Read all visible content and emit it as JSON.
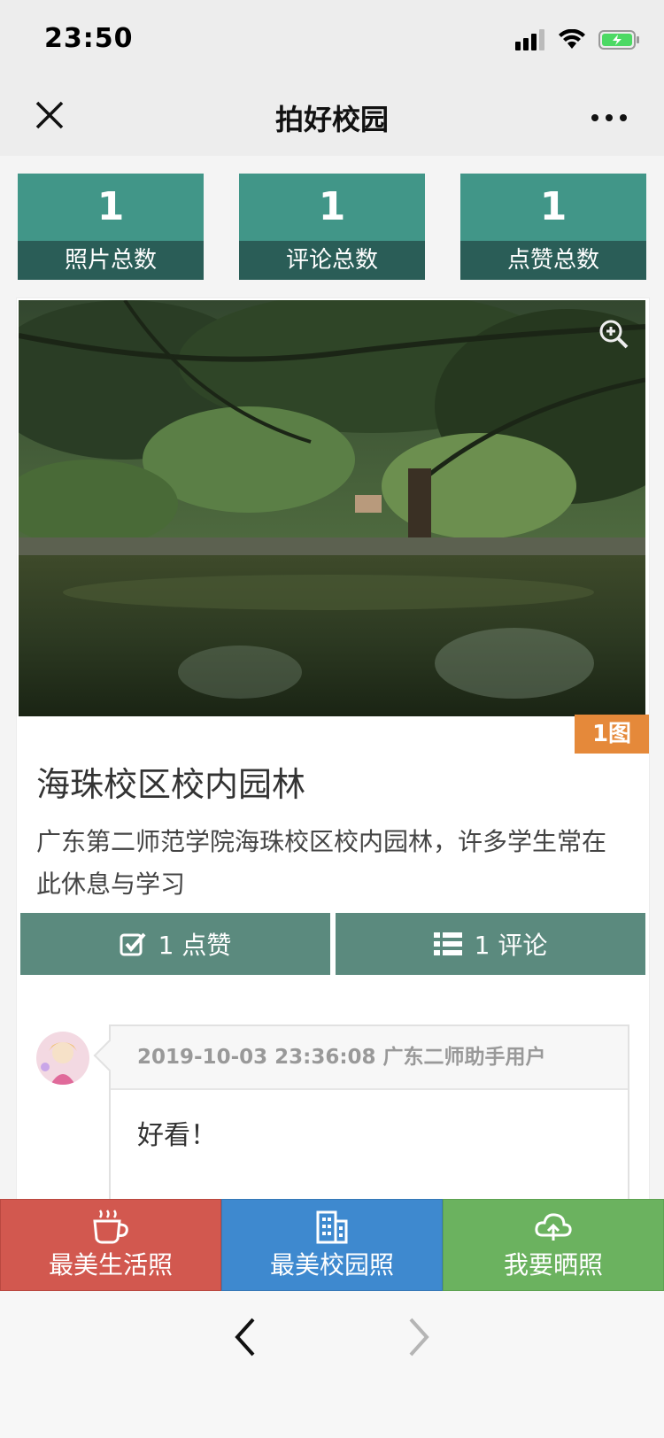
{
  "status": {
    "time": "23:50"
  },
  "nav": {
    "title": "拍好校园"
  },
  "stats": [
    {
      "value": "1",
      "label": "照片总数"
    },
    {
      "value": "1",
      "label": "评论总数"
    },
    {
      "value": "1",
      "label": "点赞总数"
    }
  ],
  "post": {
    "image_count": "1图",
    "title": "海珠校区校内园林",
    "description": "广东第二师范学院海珠校区校内园林，许多学生常在此休息与学习",
    "like_label": "1 点赞",
    "comment_label": "1 评论"
  },
  "comment": {
    "meta": "2019-10-03 23:36:08 广东二师助手用户",
    "text": "好看！"
  },
  "tabs": [
    {
      "label": "最美生活照",
      "color": "#d2584f",
      "icon": "coffee-cup-icon"
    },
    {
      "label": "最美校园照",
      "color": "#3e89cf",
      "icon": "building-icon"
    },
    {
      "label": "我要晒照",
      "color": "#6bb25f",
      "icon": "cloud-upload-icon"
    }
  ],
  "colors": {
    "stat_top": "#419688",
    "stat_bottom": "#2a5d57",
    "action": "#5b8a7e",
    "image_badge": "#e5893a"
  }
}
